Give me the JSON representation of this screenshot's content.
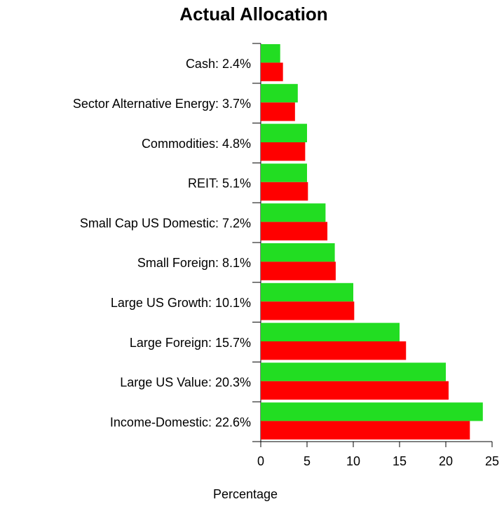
{
  "chart_data": {
    "type": "bar",
    "orientation": "horizontal",
    "title": "Actual Allocation",
    "xlabel": "Percentage",
    "categories": [
      "Cash: 2.4%",
      "Sector Alternative Energy: 3.7%",
      "Commodities: 4.8%",
      "REIT: 5.1%",
      "Small Cap US Domestic: 7.2%",
      "Small Foreign: 8.1%",
      "Large US Growth: 10.1%",
      "Large Foreign: 15.7%",
      "Large US Value: 20.3%",
      "Income-Domestic: 22.6%"
    ],
    "series": [
      {
        "color": "#22dd22",
        "values": [
          2.1,
          4.0,
          5.0,
          5.0,
          7.0,
          8.0,
          10.0,
          15.0,
          20.0,
          24.0
        ]
      },
      {
        "color": "#ff0000",
        "values": [
          2.4,
          3.7,
          4.8,
          5.1,
          7.2,
          8.1,
          10.1,
          15.7,
          20.3,
          22.6
        ]
      }
    ],
    "xlim": [
      0,
      25
    ],
    "xticks": [
      0,
      5,
      10,
      15,
      20,
      25
    ]
  }
}
